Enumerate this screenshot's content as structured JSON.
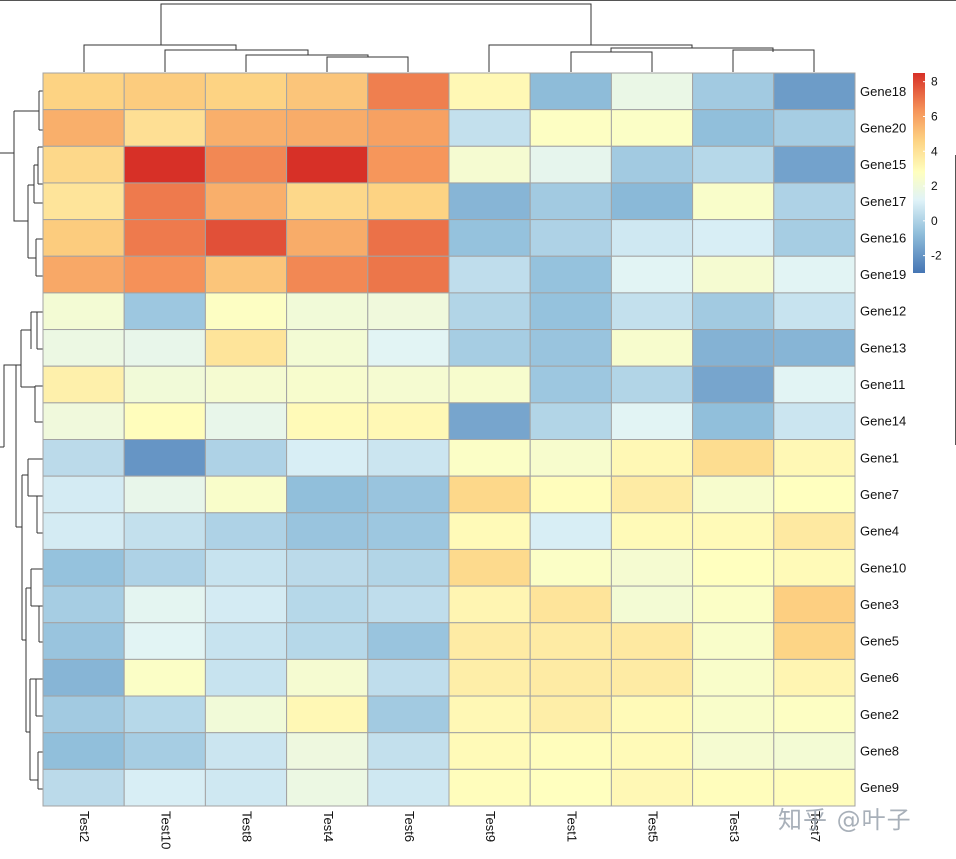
{
  "chart_data": {
    "type": "heatmap",
    "title": "",
    "columns": [
      "Test2",
      "Test10",
      "Test8",
      "Test4",
      "Test6",
      "Test9",
      "Test1",
      "Test5",
      "Test3",
      "Test7"
    ],
    "rows": [
      "Gene18",
      "Gene20",
      "Gene15",
      "Gene17",
      "Gene16",
      "Gene19",
      "Gene12",
      "Gene13",
      "Gene11",
      "Gene14",
      "Gene1",
      "Gene7",
      "Gene4",
      "Gene10",
      "Gene3",
      "Gene5",
      "Gene6",
      "Gene2",
      "Gene8",
      "Gene9"
    ],
    "values": [
      [
        4.6,
        4.8,
        4.6,
        5.0,
        6.8,
        3.1,
        -0.8,
        1.7,
        -0.3,
        -1.8
      ],
      [
        5.6,
        4.1,
        5.6,
        5.7,
        6.0,
        0.5,
        2.7,
        2.6,
        -0.7,
        -0.2
      ],
      [
        4.4,
        8.5,
        6.6,
        8.5,
        6.3,
        2.3,
        1.5,
        -0.3,
        0.2,
        -1.6
      ],
      [
        3.9,
        6.9,
        5.6,
        4.4,
        4.6,
        -1.0,
        -0.3,
        -0.9,
        2.5,
        0.0
      ],
      [
        4.8,
        6.9,
        7.8,
        5.7,
        7.1,
        -0.6,
        0.0,
        0.8,
        1.0,
        -0.2
      ],
      [
        5.8,
        6.4,
        5.0,
        6.6,
        7.0,
        0.4,
        -0.6,
        1.3,
        2.3,
        1.3
      ],
      [
        2.2,
        -0.4,
        2.7,
        2.1,
        2.0,
        0.1,
        -0.6,
        0.5,
        -0.3,
        0.6
      ],
      [
        1.8,
        1.6,
        3.9,
        2.2,
        1.3,
        -0.2,
        -0.5,
        2.4,
        -1.1,
        -1.0
      ],
      [
        3.4,
        2.1,
        2.3,
        2.4,
        2.3,
        2.4,
        -0.4,
        0.1,
        -1.5,
        1.3
      ],
      [
        2.0,
        2.9,
        1.6,
        3.0,
        3.1,
        -1.5,
        0.1,
        1.3,
        -0.7,
        0.7
      ],
      [
        0.3,
        -2.0,
        0.0,
        1.0,
        0.7,
        2.6,
        2.4,
        3.1,
        4.2,
        3.1
      ],
      [
        0.9,
        1.6,
        2.5,
        -0.7,
        -0.5,
        4.4,
        2.9,
        3.6,
        2.4,
        2.8
      ],
      [
        0.9,
        0.5,
        0.0,
        -0.5,
        -0.4,
        3.0,
        1.0,
        3.0,
        3.0,
        3.7
      ],
      [
        -0.6,
        0.0,
        0.6,
        0.3,
        0.1,
        4.3,
        2.6,
        2.3,
        2.8,
        3.0
      ],
      [
        -0.2,
        1.4,
        0.9,
        0.2,
        0.4,
        3.2,
        3.9,
        2.2,
        2.6,
        4.7
      ],
      [
        -0.5,
        1.3,
        0.6,
        0.2,
        -0.5,
        3.6,
        3.6,
        3.7,
        2.5,
        4.5
      ],
      [
        -1.0,
        2.6,
        0.6,
        2.3,
        0.4,
        3.5,
        3.6,
        3.6,
        2.5,
        3.2
      ],
      [
        -0.3,
        0.2,
        2.1,
        3.1,
        -0.3,
        3.1,
        3.5,
        3.0,
        2.5,
        2.7
      ],
      [
        -0.7,
        -0.2,
        0.7,
        1.9,
        0.5,
        3.0,
        2.9,
        3.0,
        2.3,
        2.2
      ],
      [
        0.3,
        1.0,
        0.8,
        1.8,
        0.8,
        2.9,
        2.8,
        3.1,
        2.9,
        2.9
      ]
    ],
    "color_scale": {
      "min": -3,
      "max": 8.5,
      "stops": [
        {
          "value": -3,
          "color": "#4575b4"
        },
        {
          "value": -0.7,
          "color": "#91bfdb"
        },
        {
          "value": 1.2,
          "color": "#e0f3f8"
        },
        {
          "value": 2.8,
          "color": "#ffffbf"
        },
        {
          "value": 4.6,
          "color": "#fdd383"
        },
        {
          "value": 6.3,
          "color": "#f6965b"
        },
        {
          "value": 8.5,
          "color": "#d73027"
        }
      ]
    },
    "legend": {
      "ticks": [
        8,
        6,
        4,
        2,
        0,
        -2
      ],
      "placement": "top-right"
    },
    "cell_border_color": "#a3a3a3",
    "row_dendrogram": true,
    "column_dendrogram": true
  },
  "watermark": "知乎 @叶子"
}
